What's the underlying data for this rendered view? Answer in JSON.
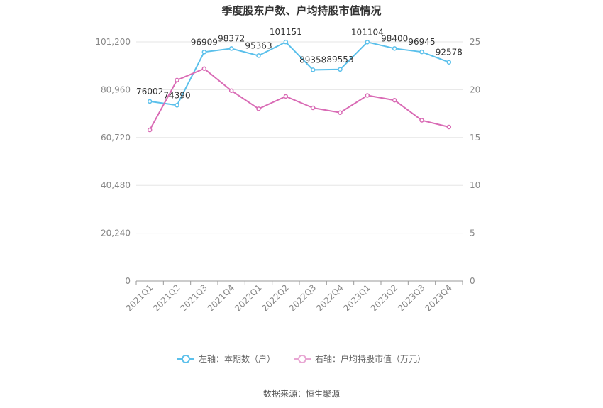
{
  "chart_data": {
    "type": "line",
    "title": "季度股东户数、户均持股市值情况",
    "categories": [
      "2021Q1",
      "2021Q2",
      "2021Q3",
      "2021Q4",
      "2022Q1",
      "2022Q2",
      "2022Q3",
      "2022Q4",
      "2023Q1",
      "2023Q2",
      "2023Q3",
      "2023Q4"
    ],
    "left_axis": {
      "ticks": [
        "0",
        "20,240",
        "40,480",
        "60,720",
        "80,960",
        "101,200"
      ],
      "min": 0,
      "max": 101200
    },
    "right_axis": {
      "ticks": [
        "0",
        "5",
        "10",
        "15",
        "20",
        "25"
      ],
      "min": 0,
      "max": 25
    },
    "series": [
      {
        "name": "左轴：本期数（户）",
        "axis": "left",
        "color": "#5bc0eb",
        "values": [
          76002,
          74390,
          96909,
          98372,
          95363,
          101151,
          89358,
          89553,
          101104,
          98400,
          96945,
          92578
        ],
        "labels": [
          "76002",
          "74390",
          "96909",
          "98372",
          "95363",
          "101151",
          "89358",
          "89553",
          "101104",
          "98400",
          "96945",
          "92578"
        ]
      },
      {
        "name": "右轴：户均持股市值（万元）",
        "axis": "right",
        "color": "#d96bb5",
        "values": [
          15.8,
          21.0,
          22.2,
          19.9,
          18.0,
          19.3,
          18.1,
          17.6,
          19.4,
          18.9,
          16.8,
          16.1
        ]
      }
    ],
    "grid": true,
    "legend_position": "bottom"
  },
  "footer": {
    "source": "数据来源：恒生聚源"
  }
}
